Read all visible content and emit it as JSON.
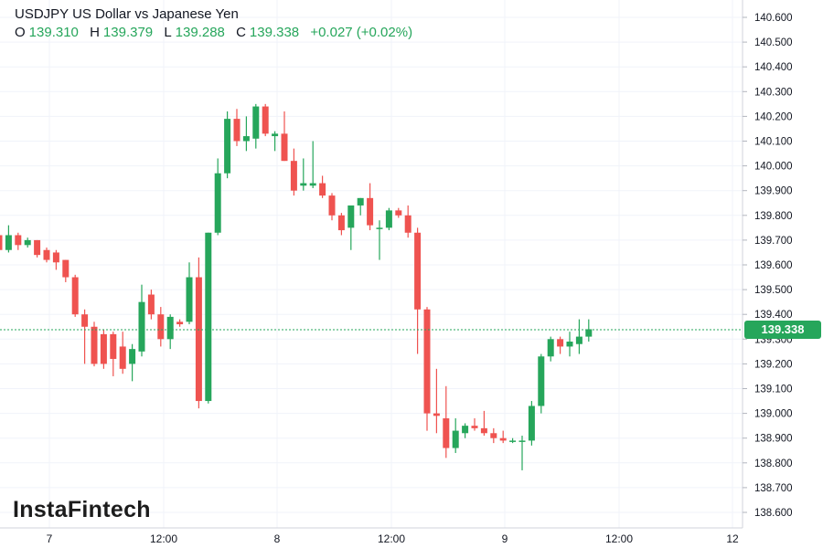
{
  "legend": {
    "title": "USDJPY US Dollar vs Japanese Yen",
    "o_label": "O",
    "o_value": "139.310",
    "h_label": "H",
    "h_value": "139.379",
    "l_label": "L",
    "l_value": "139.288",
    "c_label": "C",
    "c_value": "139.338",
    "change": "+0.027 (+0.02%)"
  },
  "brand": "InstaFintech",
  "last_price_label": "139.338",
  "colors": {
    "up": "#26a65b",
    "down": "#ef5350",
    "grid": "#f0f3fa",
    "text": "#131722"
  },
  "chart_data": {
    "type": "candlestick",
    "title": "USDJPY US Dollar vs Japanese Yen",
    "y_ticks": [
      "140.600",
      "140.500",
      "140.400",
      "140.300",
      "140.200",
      "140.100",
      "140.000",
      "139.900",
      "139.800",
      "139.700",
      "139.600",
      "139.500",
      "139.400",
      "139.300",
      "139.200",
      "139.100",
      "139.000",
      "138.900",
      "138.800",
      "138.700",
      "138.600"
    ],
    "ylim": [
      138.56,
      140.64
    ],
    "x_ticks": [
      "7",
      "12:00",
      "8",
      "12:00",
      "9",
      "12:00",
      "12"
    ],
    "last_price": 139.338,
    "candles": [
      {
        "o": 139.72,
        "h": 139.75,
        "l": 139.6,
        "c": 139.66
      },
      {
        "o": 139.66,
        "h": 139.76,
        "l": 139.65,
        "c": 139.72
      },
      {
        "o": 139.72,
        "h": 139.73,
        "l": 139.66,
        "c": 139.68
      },
      {
        "o": 139.68,
        "h": 139.71,
        "l": 139.67,
        "c": 139.7
      },
      {
        "o": 139.7,
        "h": 139.7,
        "l": 139.63,
        "c": 139.64
      },
      {
        "o": 139.66,
        "h": 139.67,
        "l": 139.61,
        "c": 139.62
      },
      {
        "o": 139.65,
        "h": 139.66,
        "l": 139.58,
        "c": 139.61
      },
      {
        "o": 139.62,
        "h": 139.62,
        "l": 139.53,
        "c": 139.55
      },
      {
        "o": 139.55,
        "h": 139.56,
        "l": 139.39,
        "c": 139.4
      },
      {
        "o": 139.4,
        "h": 139.42,
        "l": 139.2,
        "c": 139.35
      },
      {
        "o": 139.35,
        "h": 139.37,
        "l": 139.19,
        "c": 139.2
      },
      {
        "o": 139.32,
        "h": 139.34,
        "l": 139.18,
        "c": 139.2
      },
      {
        "o": 139.32,
        "h": 139.33,
        "l": 139.15,
        "c": 139.22
      },
      {
        "o": 139.27,
        "h": 139.33,
        "l": 139.16,
        "c": 139.18
      },
      {
        "o": 139.2,
        "h": 139.28,
        "l": 139.13,
        "c": 139.26
      },
      {
        "o": 139.25,
        "h": 139.52,
        "l": 139.23,
        "c": 139.45
      },
      {
        "o": 139.48,
        "h": 139.5,
        "l": 139.38,
        "c": 139.4
      },
      {
        "o": 139.4,
        "h": 139.43,
        "l": 139.27,
        "c": 139.3
      },
      {
        "o": 139.3,
        "h": 139.4,
        "l": 139.26,
        "c": 139.39
      },
      {
        "o": 139.37,
        "h": 139.38,
        "l": 139.35,
        "c": 139.36
      },
      {
        "o": 139.37,
        "h": 139.61,
        "l": 139.36,
        "c": 139.55
      },
      {
        "o": 139.55,
        "h": 139.63,
        "l": 139.02,
        "c": 139.05
      },
      {
        "o": 139.05,
        "h": 139.73,
        "l": 139.04,
        "c": 139.73
      },
      {
        "o": 139.73,
        "h": 140.03,
        "l": 139.72,
        "c": 139.97
      },
      {
        "o": 139.97,
        "h": 140.22,
        "l": 139.95,
        "c": 140.19
      },
      {
        "o": 140.19,
        "h": 140.23,
        "l": 140.08,
        "c": 140.1
      },
      {
        "o": 140.1,
        "h": 140.2,
        "l": 140.06,
        "c": 140.12
      },
      {
        "o": 140.11,
        "h": 140.25,
        "l": 140.07,
        "c": 140.24
      },
      {
        "o": 140.24,
        "h": 140.25,
        "l": 140.12,
        "c": 140.13
      },
      {
        "o": 140.12,
        "h": 140.14,
        "l": 140.06,
        "c": 140.13
      },
      {
        "o": 140.13,
        "h": 140.22,
        "l": 140.02,
        "c": 140.02
      },
      {
        "o": 140.02,
        "h": 140.07,
        "l": 139.88,
        "c": 139.9
      },
      {
        "o": 139.92,
        "h": 140.03,
        "l": 139.9,
        "c": 139.93
      },
      {
        "o": 139.92,
        "h": 140.1,
        "l": 139.91,
        "c": 139.93
      },
      {
        "o": 139.93,
        "h": 139.96,
        "l": 139.87,
        "c": 139.88
      },
      {
        "o": 139.88,
        "h": 139.89,
        "l": 139.78,
        "c": 139.8
      },
      {
        "o": 139.8,
        "h": 139.81,
        "l": 139.72,
        "c": 139.74
      },
      {
        "o": 139.75,
        "h": 139.83,
        "l": 139.66,
        "c": 139.84
      },
      {
        "o": 139.84,
        "h": 139.87,
        "l": 139.8,
        "c": 139.87
      },
      {
        "o": 139.87,
        "h": 139.93,
        "l": 139.74,
        "c": 139.76
      },
      {
        "o": 139.75,
        "h": 139.78,
        "l": 139.62,
        "c": 139.75
      },
      {
        "o": 139.75,
        "h": 139.83,
        "l": 139.74,
        "c": 139.82
      },
      {
        "o": 139.82,
        "h": 139.83,
        "l": 139.79,
        "c": 139.8
      },
      {
        "o": 139.8,
        "h": 139.84,
        "l": 139.71,
        "c": 139.73
      },
      {
        "o": 139.73,
        "h": 139.75,
        "l": 139.24,
        "c": 139.42
      },
      {
        "o": 139.42,
        "h": 139.43,
        "l": 138.93,
        "c": 139.0
      },
      {
        "o": 139.0,
        "h": 139.18,
        "l": 138.92,
        "c": 138.99
      },
      {
        "o": 138.98,
        "h": 139.11,
        "l": 138.82,
        "c": 138.86
      },
      {
        "o": 138.86,
        "h": 138.98,
        "l": 138.84,
        "c": 138.93
      },
      {
        "o": 138.92,
        "h": 138.96,
        "l": 138.9,
        "c": 138.95
      },
      {
        "o": 138.95,
        "h": 138.98,
        "l": 138.93,
        "c": 138.94
      },
      {
        "o": 138.94,
        "h": 139.01,
        "l": 138.91,
        "c": 138.92
      },
      {
        "o": 138.92,
        "h": 138.94,
        "l": 138.88,
        "c": 138.9
      },
      {
        "o": 138.9,
        "h": 138.93,
        "l": 138.88,
        "c": 138.89
      },
      {
        "o": 138.89,
        "h": 138.9,
        "l": 138.88,
        "c": 138.89
      },
      {
        "o": 138.89,
        "h": 138.91,
        "l": 138.77,
        "c": 138.89
      },
      {
        "o": 138.89,
        "h": 139.05,
        "l": 138.87,
        "c": 139.03
      },
      {
        "o": 139.03,
        "h": 139.24,
        "l": 139.0,
        "c": 139.23
      },
      {
        "o": 139.23,
        "h": 139.31,
        "l": 139.21,
        "c": 139.3
      },
      {
        "o": 139.3,
        "h": 139.31,
        "l": 139.24,
        "c": 139.27
      },
      {
        "o": 139.27,
        "h": 139.33,
        "l": 139.23,
        "c": 139.29
      },
      {
        "o": 139.28,
        "h": 139.38,
        "l": 139.24,
        "c": 139.31
      },
      {
        "o": 139.31,
        "h": 139.38,
        "l": 139.29,
        "c": 139.34
      }
    ]
  }
}
